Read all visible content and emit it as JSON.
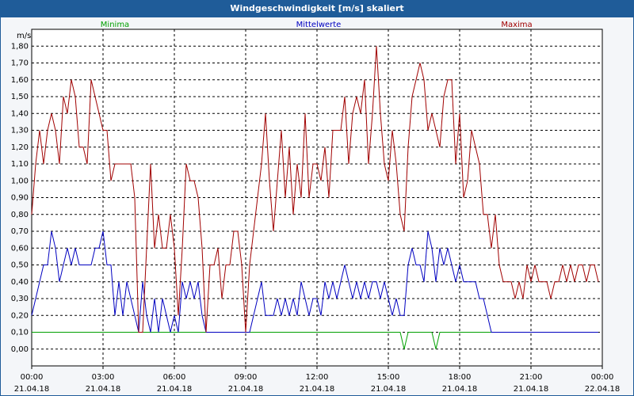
{
  "chart_data": {
    "type": "line",
    "title": "Windgeschwindigkeit [m/s] skaliert",
    "y_label": "m/s",
    "x": [
      0,
      10,
      20,
      30,
      40,
      50,
      60,
      70,
      80,
      90,
      100,
      110,
      120,
      130,
      140,
      150,
      160,
      170,
      180,
      190,
      200,
      210,
      220,
      230,
      240,
      250,
      260,
      270,
      280,
      290,
      300,
      310,
      320,
      330,
      340,
      350,
      360,
      370,
      380,
      390,
      400,
      410,
      420,
      430,
      440,
      450,
      460,
      470,
      480,
      490,
      500,
      510,
      520,
      530,
      540,
      550,
      560,
      570,
      580,
      590,
      600,
      610,
      620,
      630,
      640,
      650,
      660,
      670,
      680,
      690,
      700,
      710,
      720,
      730,
      740,
      750,
      760,
      770,
      780,
      790,
      800,
      810,
      820,
      830,
      840,
      850,
      860,
      870,
      880,
      890,
      900,
      910,
      920,
      930,
      940,
      950,
      960,
      970,
      980,
      990,
      1000,
      1010,
      1020,
      1030,
      1040,
      1050,
      1060,
      1070,
      1080,
      1090,
      1100,
      1110,
      1120,
      1130,
      1140,
      1150,
      1160,
      1170,
      1180,
      1190,
      1200,
      1210,
      1220,
      1230,
      1240,
      1250,
      1260,
      1270,
      1280,
      1290,
      1300,
      1310,
      1320,
      1330,
      1340,
      1350,
      1360,
      1370,
      1380,
      1390,
      1400,
      1410,
      1420,
      1430
    ],
    "series": [
      {
        "name": "Minima",
        "color": "#00a000",
        "values": [
          0.1,
          0.1,
          0.1,
          0.1,
          0.1,
          0.1,
          0.1,
          0.1,
          0.1,
          0.1,
          0.1,
          0.1,
          0.1,
          0.1,
          0.1,
          0.1,
          0.1,
          0.1,
          0.1,
          0.1,
          0.1,
          0.1,
          0.1,
          0.1,
          0.1,
          0.1,
          0.1,
          0.1,
          0.1,
          0.1,
          0.1,
          0.1,
          0.1,
          0.1,
          0.1,
          0.1,
          0.1,
          0.1,
          0.1,
          0.1,
          0.1,
          0.1,
          0.1,
          0.1,
          0.1,
          0.1,
          0.1,
          0.1,
          0.1,
          0.1,
          0.1,
          0.1,
          0.1,
          0.1,
          0.1,
          0.1,
          0.1,
          0.1,
          0.1,
          0.1,
          0.1,
          0.1,
          0.1,
          0.1,
          0.1,
          0.1,
          0.1,
          0.1,
          0.1,
          0.1,
          0.1,
          0.1,
          0.1,
          0.1,
          0.1,
          0.1,
          0.1,
          0.1,
          0.1,
          0.1,
          0.1,
          0.1,
          0.1,
          0.1,
          0.1,
          0.1,
          0.1,
          0.1,
          0.1,
          0.1,
          0.1,
          0.1,
          0.1,
          0.1,
          0.0,
          0.1,
          0.1,
          0.1,
          0.1,
          0.1,
          0.1,
          0.1,
          0.0,
          0.1,
          0.1,
          0.1,
          0.1,
          0.1,
          0.1,
          0.1,
          0.1,
          0.1,
          0.1,
          0.1,
          0.1,
          0.1,
          0.1,
          0.1,
          0.1,
          0.1,
          0.1,
          0.1,
          0.1,
          0.1,
          0.1,
          0.1,
          0.1,
          0.1,
          0.1,
          0.1,
          0.1,
          0.1,
          0.1,
          0.1,
          0.1,
          0.1,
          0.1,
          0.1,
          0.1,
          0.1,
          0.1,
          0.1,
          0.1,
          0.1
        ]
      },
      {
        "name": "Mittelwerte",
        "color": "#0000c0",
        "values": [
          0.2,
          0.3,
          0.4,
          0.5,
          0.5,
          0.7,
          0.6,
          0.4,
          0.5,
          0.6,
          0.5,
          0.6,
          0.5,
          0.5,
          0.5,
          0.5,
          0.6,
          0.6,
          0.7,
          0.5,
          0.5,
          0.2,
          0.4,
          0.2,
          0.4,
          0.3,
          0.2,
          0.1,
          0.4,
          0.2,
          0.1,
          0.3,
          0.1,
          0.3,
          0.2,
          0.1,
          0.2,
          0.1,
          0.4,
          0.3,
          0.4,
          0.3,
          0.4,
          0.2,
          0.1,
          0.1,
          0.1,
          0.1,
          0.1,
          0.1,
          0.1,
          0.1,
          0.1,
          0.1,
          0.1,
          0.1,
          0.2,
          0.3,
          0.4,
          0.2,
          0.2,
          0.2,
          0.3,
          0.2,
          0.3,
          0.2,
          0.3,
          0.2,
          0.4,
          0.3,
          0.2,
          0.3,
          0.3,
          0.2,
          0.4,
          0.3,
          0.4,
          0.3,
          0.4,
          0.5,
          0.4,
          0.3,
          0.4,
          0.3,
          0.4,
          0.3,
          0.4,
          0.4,
          0.3,
          0.4,
          0.3,
          0.2,
          0.3,
          0.2,
          0.2,
          0.5,
          0.6,
          0.5,
          0.5,
          0.4,
          0.7,
          0.6,
          0.4,
          0.6,
          0.5,
          0.6,
          0.5,
          0.4,
          0.5,
          0.4,
          0.4,
          0.4,
          0.4,
          0.3,
          0.3,
          0.2,
          0.1,
          0.1,
          0.1,
          0.1,
          0.1,
          0.1,
          0.1,
          0.1,
          0.1,
          0.1,
          0.1,
          0.1,
          0.1,
          0.1,
          0.1,
          0.1,
          0.1,
          0.1,
          0.1,
          0.1,
          0.1,
          0.1,
          0.1,
          0.1,
          0.1,
          0.1,
          0.1,
          0.1
        ]
      },
      {
        "name": "Maxima",
        "color": "#a00000",
        "values": [
          0.8,
          1.1,
          1.3,
          1.1,
          1.3,
          1.4,
          1.3,
          1.1,
          1.5,
          1.4,
          1.6,
          1.5,
          1.2,
          1.2,
          1.1,
          1.6,
          1.5,
          1.4,
          1.3,
          1.3,
          1.0,
          1.1,
          1.1,
          1.1,
          1.1,
          1.1,
          0.9,
          0.1,
          0.1,
          0.6,
          1.1,
          0.6,
          0.8,
          0.6,
          0.6,
          0.8,
          0.6,
          0.2,
          0.6,
          1.1,
          1.0,
          1.0,
          0.9,
          0.6,
          0.1,
          0.5,
          0.5,
          0.6,
          0.3,
          0.5,
          0.5,
          0.7,
          0.7,
          0.5,
          0.1,
          0.5,
          0.7,
          0.9,
          1.1,
          1.4,
          1.0,
          0.7,
          1.0,
          1.3,
          0.9,
          1.2,
          0.8,
          1.1,
          0.9,
          1.4,
          0.9,
          1.1,
          1.1,
          1.0,
          1.2,
          0.9,
          1.3,
          1.3,
          1.3,
          1.5,
          1.1,
          1.4,
          1.5,
          1.4,
          1.6,
          1.1,
          1.4,
          1.8,
          1.4,
          1.1,
          1.0,
          1.3,
          1.1,
          0.8,
          0.7,
          1.2,
          1.5,
          1.6,
          1.7,
          1.6,
          1.3,
          1.4,
          1.3,
          1.2,
          1.5,
          1.6,
          1.6,
          1.1,
          1.4,
          0.9,
          1.0,
          1.3,
          1.2,
          1.1,
          0.8,
          0.8,
          0.6,
          0.8,
          0.5,
          0.4,
          0.4,
          0.4,
          0.3,
          0.4,
          0.3,
          0.5,
          0.4,
          0.5,
          0.4,
          0.4,
          0.4,
          0.3,
          0.4,
          0.4,
          0.5,
          0.4,
          0.5,
          0.4,
          0.5,
          0.5,
          0.4,
          0.5,
          0.5,
          0.4
        ]
      }
    ],
    "xlim": [
      0,
      1440
    ],
    "xticks": [
      {
        "value": 0,
        "label": "00:00",
        "date": "21.04.18"
      },
      {
        "value": 180,
        "label": "03:00",
        "date": "21.04.18"
      },
      {
        "value": 360,
        "label": "06:00",
        "date": "21.04.18"
      },
      {
        "value": 540,
        "label": "09:00",
        "date": "21.04.18"
      },
      {
        "value": 720,
        "label": "12:00",
        "date": "21.04.18"
      },
      {
        "value": 900,
        "label": "15:00",
        "date": "21.04.18"
      },
      {
        "value": 1080,
        "label": "18:00",
        "date": "21.04.18"
      },
      {
        "value": 1260,
        "label": "21:00",
        "date": "21.04.18"
      },
      {
        "value": 1440,
        "label": "00:00",
        "date": "22.04.18"
      }
    ],
    "ylim": [
      -0.1,
      1.9
    ],
    "yticks": [
      {
        "value": 0,
        "label": "0,00"
      },
      {
        "value": 0.1,
        "label": "0,10"
      },
      {
        "value": 0.2,
        "label": "0,20"
      },
      {
        "value": 0.3,
        "label": "0,30"
      },
      {
        "value": 0.4,
        "label": "0,40"
      },
      {
        "value": 0.5,
        "label": "0,50"
      },
      {
        "value": 0.6,
        "label": "0,60"
      },
      {
        "value": 0.7,
        "label": "0,70"
      },
      {
        "value": 0.8,
        "label": "0,80"
      },
      {
        "value": 0.9,
        "label": "0,90"
      },
      {
        "value": 1.0,
        "label": "1,00"
      },
      {
        "value": 1.1,
        "label": "1,10"
      },
      {
        "value": 1.2,
        "label": "1,20"
      },
      {
        "value": 1.3,
        "label": "1,30"
      },
      {
        "value": 1.4,
        "label": "1,40"
      },
      {
        "value": 1.5,
        "label": "1,50"
      },
      {
        "value": 1.6,
        "label": "1,60"
      },
      {
        "value": 1.7,
        "label": "1,70"
      },
      {
        "value": 1.8,
        "label": "1,80"
      }
    ],
    "grid": true
  }
}
